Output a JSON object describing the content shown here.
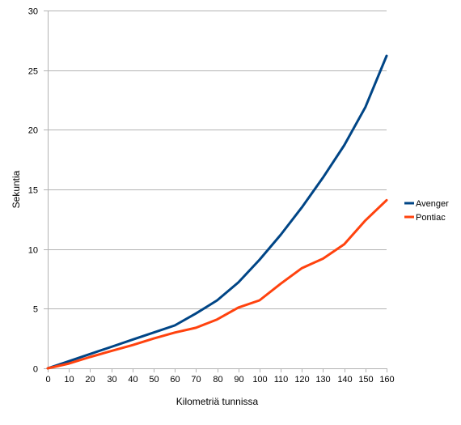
{
  "chart_data": {
    "type": "line",
    "title": "",
    "xlabel": "Kilometriä tunnissa",
    "ylabel": "Sekuntia",
    "x": [
      0,
      10,
      20,
      30,
      40,
      50,
      60,
      70,
      80,
      90,
      100,
      110,
      120,
      130,
      140,
      150,
      160
    ],
    "xlim": [
      0,
      160
    ],
    "ylim": [
      0,
      30
    ],
    "x_ticks": [
      0,
      10,
      20,
      30,
      40,
      50,
      60,
      70,
      80,
      90,
      100,
      110,
      120,
      130,
      140,
      150,
      160
    ],
    "y_ticks": [
      0,
      5,
      10,
      15,
      20,
      25,
      30
    ],
    "grid": "horizontal",
    "legend_position": "right",
    "series": [
      {
        "name": "Avenger",
        "color": "#004586",
        "values": [
          0,
          0.6,
          1.2,
          1.8,
          2.4,
          3.0,
          3.6,
          4.6,
          5.7,
          7.2,
          9.1,
          11.2,
          13.5,
          16.0,
          18.7,
          21.9,
          26.2
        ]
      },
      {
        "name": "Pontiac",
        "color": "#ff420e",
        "values": [
          0,
          0.4,
          0.95,
          1.45,
          1.95,
          2.5,
          3.0,
          3.4,
          4.1,
          5.1,
          5.7,
          7.1,
          8.4,
          9.2,
          10.4,
          12.4,
          14.1
        ]
      }
    ]
  }
}
